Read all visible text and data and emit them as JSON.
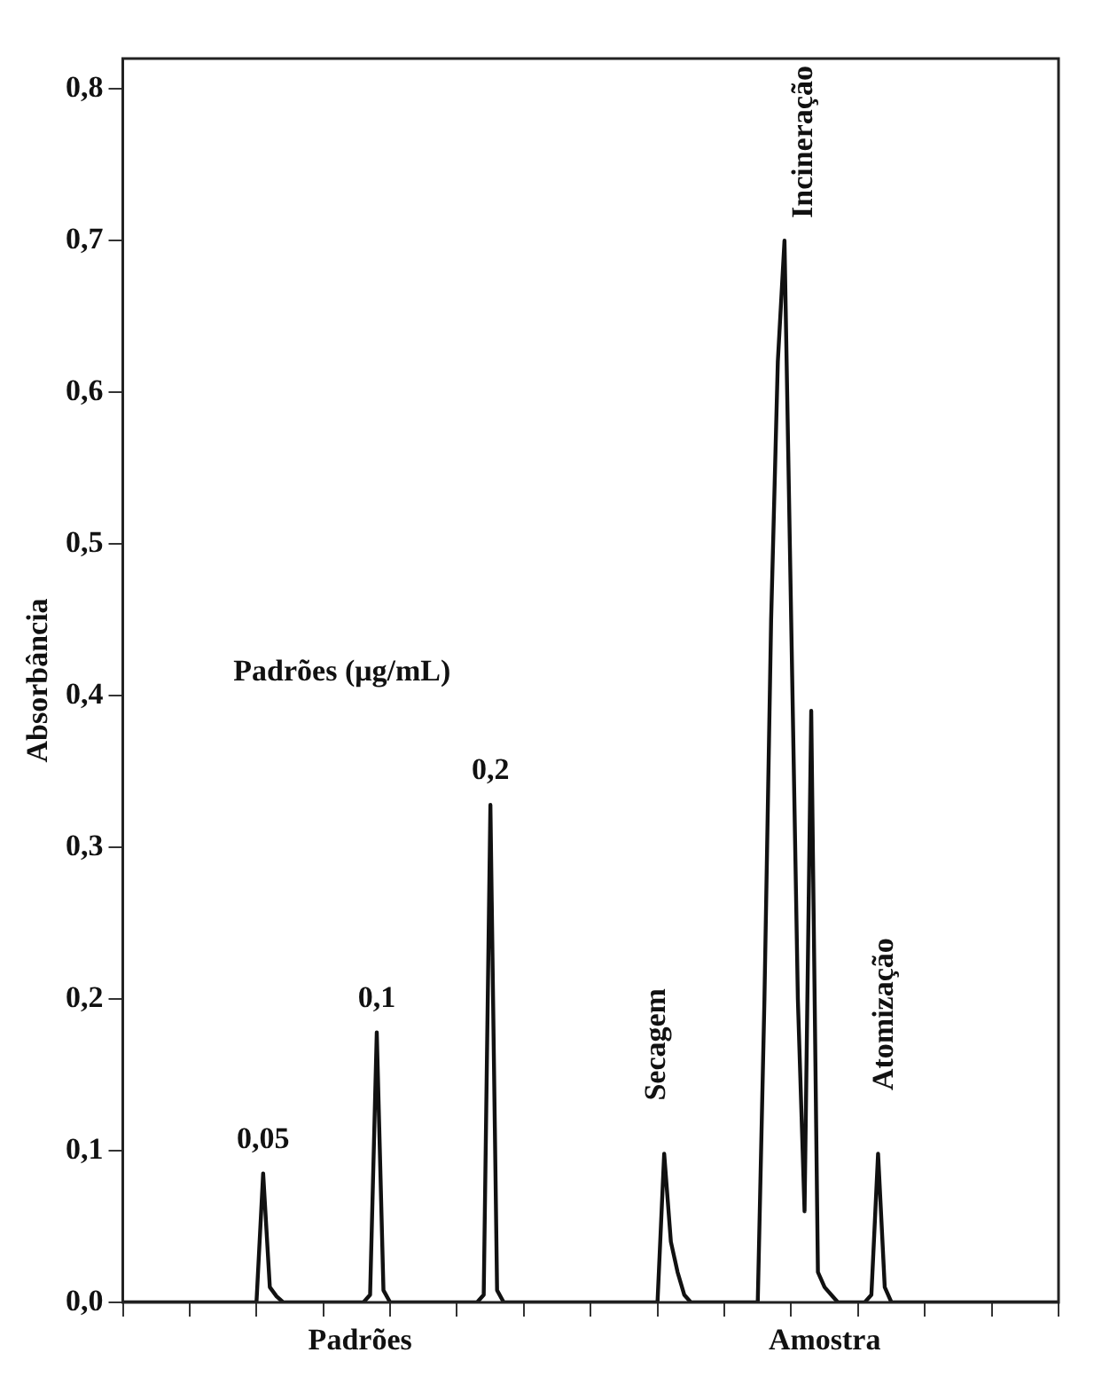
{
  "chart_data": {
    "type": "line",
    "ylabel": "Absorbância",
    "categories": [
      null,
      null,
      null,
      null,
      null,
      null,
      null,
      null,
      null,
      null,
      null,
      null,
      null,
      null,
      null,
      null,
      null,
      null,
      null,
      null,
      null,
      null,
      null,
      null,
      null,
      null,
      null,
      null,
      null,
      null,
      null,
      null,
      null,
      null,
      null,
      null,
      null,
      null,
      null,
      null,
      null,
      null,
      null,
      null,
      null,
      null,
      null,
      null,
      null,
      null,
      null,
      null,
      null,
      null,
      null,
      null,
      null,
      null,
      null,
      null,
      null,
      null,
      null,
      null,
      null,
      null,
      null,
      null,
      null,
      null,
      null,
      null,
      null,
      null,
      null,
      null,
      null,
      null,
      null,
      null,
      null,
      null,
      null,
      null,
      null,
      null,
      null,
      null,
      null,
      null,
      null,
      null,
      null,
      null,
      null,
      null,
      null,
      null,
      null,
      null,
      null,
      null,
      null,
      null,
      null,
      null,
      null,
      null,
      null,
      null,
      null,
      null,
      null,
      null,
      null,
      null,
      null,
      null,
      null,
      null,
      null,
      null,
      null,
      null,
      null,
      null,
      null,
      null,
      null,
      null,
      null,
      null,
      null,
      null,
      null,
      null,
      null,
      null,
      null,
      null,
      null
    ],
    "values": [
      0,
      0,
      0,
      0,
      0,
      0,
      0,
      0,
      0,
      0,
      0,
      0,
      0,
      0,
      0,
      0,
      0,
      0,
      0,
      0,
      0,
      0.085,
      0.01,
      0.004,
      0,
      0,
      0,
      0,
      0,
      0,
      0,
      0,
      0,
      0,
      0,
      0,
      0,
      0.005,
      0.178,
      0.008,
      0,
      0,
      0,
      0,
      0,
      0,
      0,
      0,
      0,
      0,
      0,
      0,
      0,
      0,
      0.005,
      0.328,
      0.008,
      0,
      0,
      0,
      0,
      0,
      0,
      0,
      0,
      0,
      0,
      0,
      0,
      0,
      0,
      0,
      0,
      0,
      0,
      0,
      0,
      0,
      0,
      0,
      0,
      0.098,
      0.04,
      0.02,
      0.005,
      0,
      0,
      0,
      0,
      0,
      0,
      0,
      0,
      0,
      0,
      0,
      0.2,
      0.45,
      0.62,
      0.7,
      0.45,
      0.2,
      0.06,
      0.39,
      0.02,
      0.01,
      0.005,
      0,
      0,
      0,
      0,
      0,
      0.005,
      0.098,
      0.01,
      0,
      0,
      0,
      0,
      0,
      0,
      0,
      0,
      0,
      0,
      0,
      0,
      0,
      0,
      0,
      0,
      0,
      0,
      0,
      0,
      0,
      0,
      0,
      0,
      0,
      0
    ],
    "color": "#111111",
    "marker": "none",
    "grid": false,
    "tick_labels": "y",
    "ylim": [
      0,
      0.82
    ],
    "yticks": [
      {
        "value": 0,
        "label": "0,0"
      },
      {
        "value": 0.1,
        "label": "0,1"
      },
      {
        "value": 0.2,
        "label": "0,2"
      },
      {
        "value": 0.3,
        "label": "0,3"
      },
      {
        "value": 0.4,
        "label": "0,4"
      },
      {
        "value": 0.5,
        "label": "0,5"
      },
      {
        "value": 0.6,
        "label": "0,6"
      },
      {
        "value": 0.7,
        "label": "0,7"
      },
      {
        "value": 0.8,
        "label": "0,8"
      }
    ],
    "annotations": [
      "Padrões (μg/mL)",
      "0,05",
      "0,1",
      "0,2",
      "Secagem",
      "Incineração",
      "Atomização",
      "Padrões",
      "Amostra"
    ]
  }
}
